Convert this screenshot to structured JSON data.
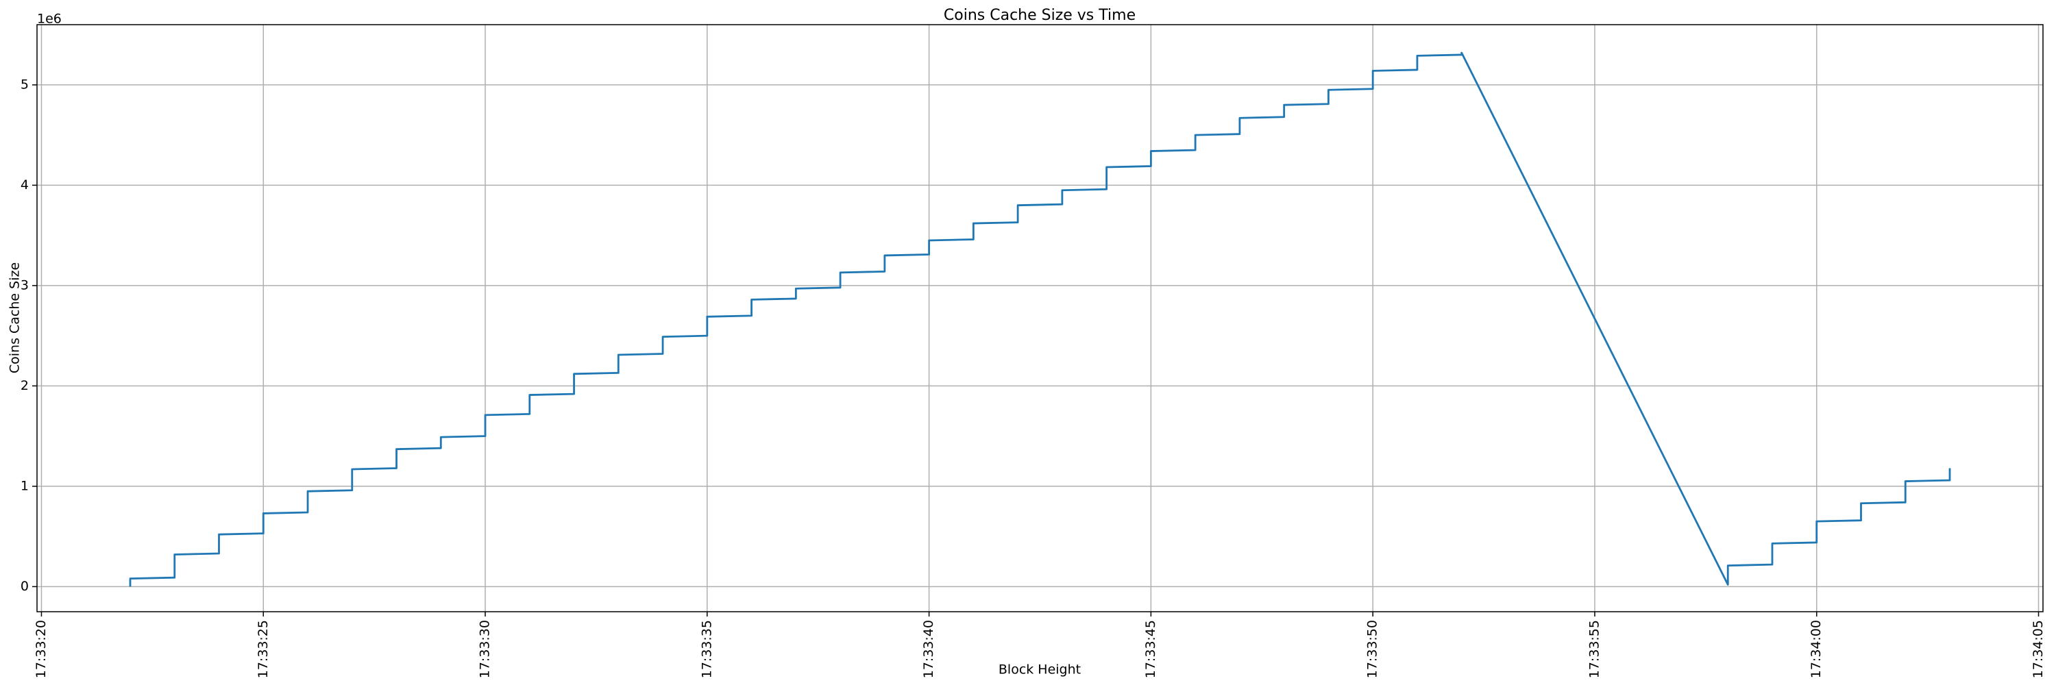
{
  "chart_data": {
    "type": "line",
    "title": "Coins Cache Size vs Time",
    "xlabel": "Block Height",
    "ylabel": "Coins Cache Size",
    "y_offset_label": "1e6",
    "x": [
      "17:33:22",
      "17:33:22",
      "17:33:23",
      "17:33:23",
      "17:33:24",
      "17:33:24",
      "17:33:25",
      "17:33:25",
      "17:33:26",
      "17:33:26",
      "17:33:27",
      "17:33:27",
      "17:33:28",
      "17:33:28",
      "17:33:29",
      "17:33:29",
      "17:33:30",
      "17:33:30",
      "17:33:31",
      "17:33:31",
      "17:33:32",
      "17:33:32",
      "17:33:33",
      "17:33:33",
      "17:33:34",
      "17:33:34",
      "17:33:35",
      "17:33:35",
      "17:33:36",
      "17:33:36",
      "17:33:37",
      "17:33:37",
      "17:33:38",
      "17:33:38",
      "17:33:39",
      "17:33:39",
      "17:33:40",
      "17:33:40",
      "17:33:41",
      "17:33:41",
      "17:33:42",
      "17:33:42",
      "17:33:43",
      "17:33:43",
      "17:33:44",
      "17:33:44",
      "17:33:45",
      "17:33:45",
      "17:33:46",
      "17:33:46",
      "17:33:47",
      "17:33:47",
      "17:33:48",
      "17:33:48",
      "17:33:49",
      "17:33:49",
      "17:33:50",
      "17:33:50",
      "17:33:51",
      "17:33:51",
      "17:33:52",
      "17:33:52",
      "17:33:58",
      "17:33:58",
      "17:33:59",
      "17:33:59",
      "17:34:00",
      "17:34:00",
      "17:34:01",
      "17:34:01",
      "17:34:02",
      "17:34:02",
      "17:34:03",
      "17:34:03"
    ],
    "values": [
      0,
      80000,
      90000,
      320000,
      330000,
      520000,
      530000,
      730000,
      740000,
      950000,
      960000,
      1170000,
      1180000,
      1370000,
      1380000,
      1490000,
      1500000,
      1710000,
      1720000,
      1910000,
      1920000,
      2120000,
      2130000,
      2310000,
      2320000,
      2490000,
      2500000,
      2690000,
      2700000,
      2860000,
      2870000,
      2970000,
      2980000,
      3130000,
      3140000,
      3300000,
      3310000,
      3450000,
      3460000,
      3620000,
      3630000,
      3800000,
      3810000,
      3950000,
      3960000,
      4180000,
      4190000,
      4340000,
      4350000,
      4500000,
      4510000,
      4670000,
      4680000,
      4800000,
      4810000,
      4950000,
      4960000,
      5140000,
      5150000,
      5290000,
      5300000,
      5320000,
      20000,
      210000,
      220000,
      430000,
      440000,
      650000,
      660000,
      830000,
      840000,
      1050000,
      1060000,
      1180000
    ],
    "color": "#1f77b4",
    "xlim": [
      "17:33:19.9",
      "17:34:05.1"
    ],
    "xticks": [
      "17:33:20",
      "17:33:25",
      "17:33:30",
      "17:33:35",
      "17:33:40",
      "17:33:45",
      "17:33:50",
      "17:33:55",
      "17:34:00",
      "17:34:05"
    ],
    "ylim": [
      -250000,
      5600000
    ],
    "yticks": [
      0,
      {
        "value": 1000000,
        "label": "1"
      },
      {
        "value": 2000000,
        "label": "2"
      },
      {
        "value": 3000000,
        "label": "3"
      },
      {
        "value": 4000000,
        "label": "4"
      },
      {
        "value": 5000000,
        "label": "5"
      }
    ],
    "grid": true
  }
}
